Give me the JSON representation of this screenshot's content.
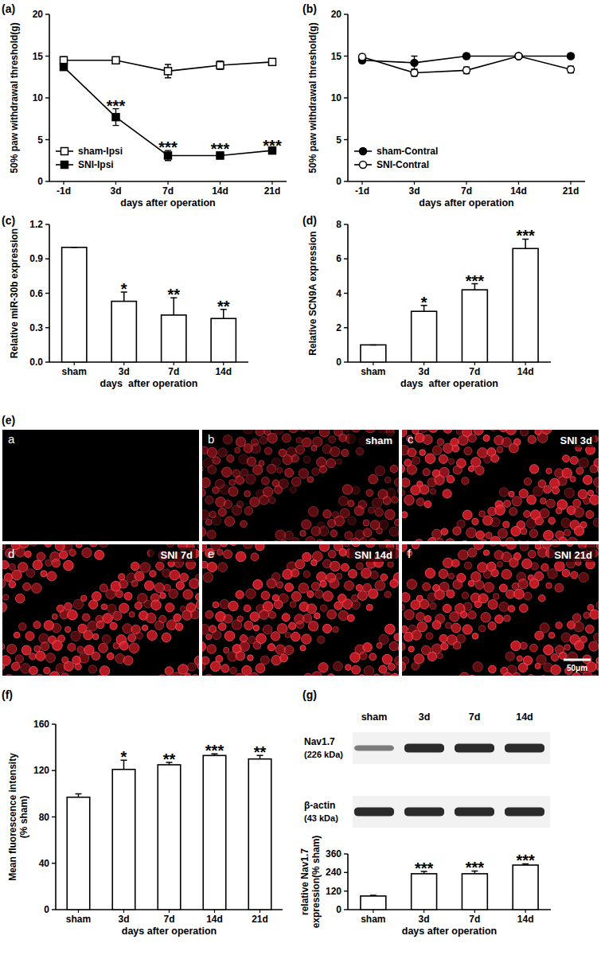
{
  "chart_data": [
    {
      "type": "line",
      "title": "(a)",
      "x_label": "days after operation",
      "y_label": "50% paw withdrawal threshold(g)",
      "categories": [
        "-1d",
        "3d",
        "7d",
        "14d",
        "21d"
      ],
      "ylim": [
        0,
        20
      ],
      "yticks": [
        0,
        5,
        10,
        15,
        20
      ],
      "legend": "lower left",
      "series": [
        {
          "name": "sham-Ipsi",
          "color": "#000000",
          "marker": "open_square",
          "values": [
            14.5,
            14.5,
            13.2,
            13.9,
            14.3
          ],
          "errors": [
            0.4,
            0.3,
            0.8,
            0.5,
            0.4
          ]
        },
        {
          "name": "SNI-Ipsi",
          "color": "#000000",
          "marker": "square",
          "values": [
            13.7,
            7.7,
            3.1,
            3.1,
            3.7
          ],
          "errors": [
            0.4,
            1.0,
            0.6,
            0.4,
            0.2
          ],
          "annotations": [
            null,
            "***",
            "***",
            "***",
            "***"
          ]
        }
      ]
    },
    {
      "type": "line",
      "title": "(b)",
      "x_label": "days after operation",
      "y_label": "50% paw withdrawal threshold(g)",
      "categories": [
        "-1d",
        "3d",
        "7d",
        "14d",
        "21d"
      ],
      "ylim": [
        0,
        20
      ],
      "yticks": [
        0,
        5,
        10,
        15,
        20
      ],
      "legend": "lower left",
      "series": [
        {
          "name": "sham-Contral",
          "color": "#000000",
          "marker": "circle",
          "values": [
            14.5,
            14.2,
            15,
            15,
            15
          ],
          "errors": [
            0.3,
            0.8,
            0.3,
            0.2,
            0.3
          ]
        },
        {
          "name": "SNI-Contral",
          "color": "#000000",
          "marker": "open_circle",
          "values": [
            14.9,
            13,
            13.3,
            15,
            13.4
          ],
          "errors": [
            0.3,
            0.4,
            0.4,
            0.2,
            0.4
          ]
        }
      ]
    },
    {
      "type": "bar",
      "title": "(c)",
      "x_label": "days  after operation",
      "y_label": "Relative miR-30b expression",
      "categories": [
        "sham",
        "3d",
        "7d",
        "14d"
      ],
      "values": [
        1,
        0.53,
        0.41,
        0.38
      ],
      "errors": [
        0,
        0.08,
        0.15,
        0.08
      ],
      "annotations": [
        null,
        "*",
        "**",
        "**"
      ],
      "color": "#ffffff",
      "ylim": [
        0,
        1.2
      ],
      "yticks": [
        {
          "value": 0,
          "label": "0.0"
        },
        0.3,
        0.6,
        0.9,
        1.2
      ]
    },
    {
      "type": "bar",
      "title": "(d)",
      "x_label": "days  after operation",
      "y_label": "Relative SCN9A expression",
      "categories": [
        "sham",
        "3d",
        "7d",
        "14d"
      ],
      "values": [
        1,
        2.95,
        4.2,
        6.6
      ],
      "errors": [
        0,
        0.35,
        0.35,
        0.55
      ],
      "annotations": [
        null,
        "*",
        "***",
        "***"
      ],
      "color": "#ffffff",
      "ylim": [
        0,
        8
      ],
      "yticks": [
        0,
        2,
        4,
        6,
        8
      ]
    },
    {
      "type": "bar",
      "title": "(f)",
      "x_label": "days after operation",
      "y_label": [
        "Mean fluorescence intensity",
        "(% sham)"
      ],
      "categories": [
        "sham",
        "3d",
        "7d",
        "14d",
        "21d"
      ],
      "values": [
        97,
        121,
        125,
        133,
        130
      ],
      "errors": [
        3,
        8,
        2,
        1.5,
        3
      ],
      "annotations": [
        null,
        "*",
        "**",
        "***",
        "**"
      ],
      "color": "#ffffff",
      "ylim": [
        0,
        160
      ],
      "yticks": [
        0,
        40,
        80,
        120,
        160
      ]
    },
    {
      "type": "bar",
      "title": "(g)",
      "x_label": "days after operation",
      "y_label": [
        "relative Nav1.7",
        "expression(% sham)"
      ],
      "categories": [
        "sham",
        "3d",
        "7d",
        "14d"
      ],
      "values": [
        88,
        232,
        232,
        288
      ],
      "errors": [
        5,
        15,
        18,
        8
      ],
      "annotations": [
        null,
        "***",
        "***",
        "***"
      ],
      "color": "#ffffff",
      "ylim": [
        0,
        360
      ],
      "yticks": [
        0,
        120,
        240,
        360
      ]
    }
  ],
  "images": {
    "title": "(e)",
    "panels": [
      {
        "letter": "a",
        "label": null
      },
      {
        "letter": "b",
        "label": "sham"
      },
      {
        "letter": "c",
        "label": "SNI 3d"
      },
      {
        "letter": "d",
        "label": "SNI 7d"
      },
      {
        "letter": "e",
        "label": "SNI 14d"
      },
      {
        "letter": "f",
        "label": "SNI 21d"
      }
    ],
    "scale_bar": "50μm"
  },
  "blot": {
    "lanes": [
      "sham",
      "3d",
      "7d",
      "14d"
    ],
    "rows": [
      {
        "name": "Nav1.7",
        "size": "(226 kDa)"
      },
      {
        "name": "β-actin",
        "size": "(43 kDa)"
      }
    ]
  }
}
